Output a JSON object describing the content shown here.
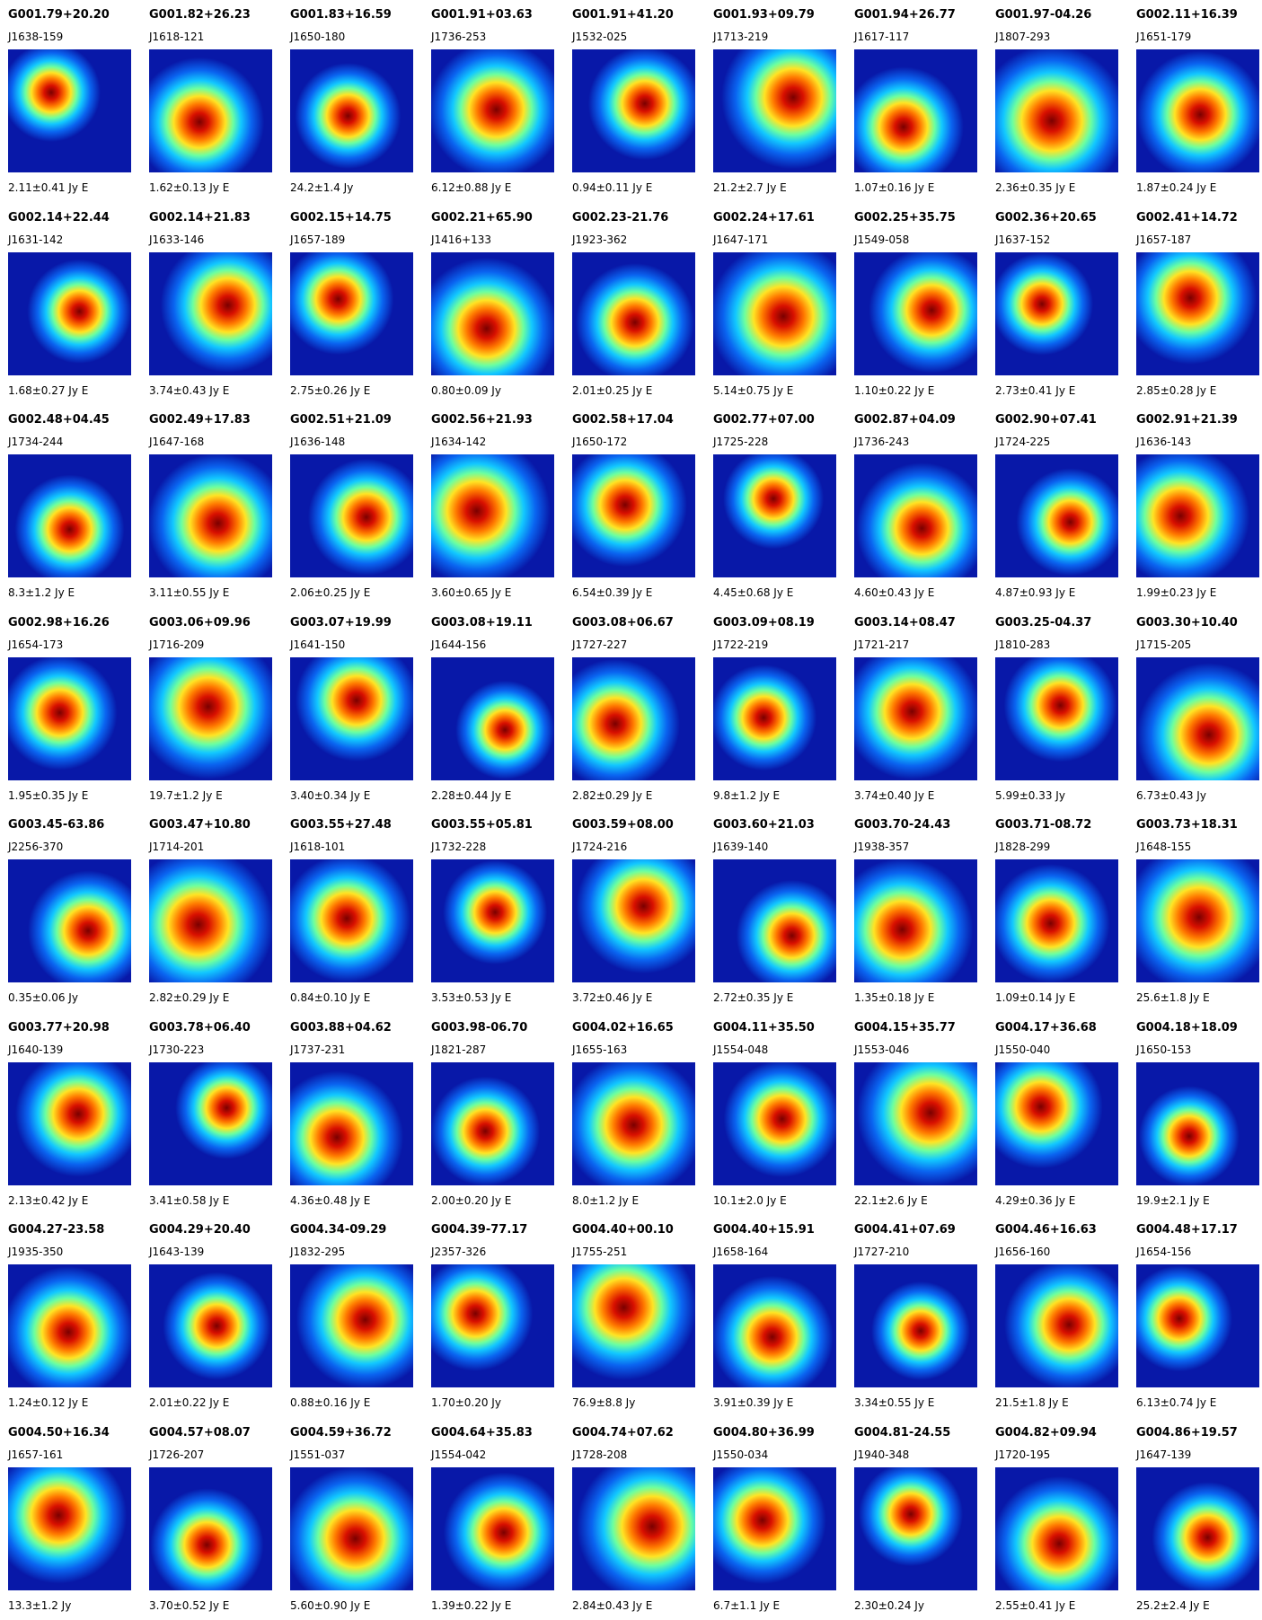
{
  "items": [
    {
      "name": "G001.79+20.20",
      "alt": "J1638-159",
      "flux": "2.11±0.41 Jy E"
    },
    {
      "name": "G001.82+26.23",
      "alt": "J1618-121",
      "flux": "1.62±0.13 Jy E"
    },
    {
      "name": "G001.83+16.59",
      "alt": "J1650-180",
      "flux": "24.2±1.4 Jy"
    },
    {
      "name": "G001.91+03.63",
      "alt": "J1736-253",
      "flux": "6.12±0.88 Jy E"
    },
    {
      "name": "G001.91+41.20",
      "alt": "J1532-025",
      "flux": "0.94±0.11 Jy E"
    },
    {
      "name": "G001.93+09.79",
      "alt": "J1713-219",
      "flux": "21.2±2.7 Jy E"
    },
    {
      "name": "G001.94+26.77",
      "alt": "J1617-117",
      "flux": "1.07±0.16 Jy E"
    },
    {
      "name": "G001.97-04.26",
      "alt": "J1807-293",
      "flux": "2.36±0.35 Jy E"
    },
    {
      "name": "G002.11+16.39",
      "alt": "J1651-179",
      "flux": "1.87±0.24 Jy E"
    },
    {
      "name": "G002.14+22.44",
      "alt": "J1631-142",
      "flux": "1.68±0.27 Jy E"
    },
    {
      "name": "G002.14+21.83",
      "alt": "J1633-146",
      "flux": "3.74±0.43 Jy E"
    },
    {
      "name": "G002.15+14.75",
      "alt": "J1657-189",
      "flux": "2.75±0.26 Jy E"
    },
    {
      "name": "G002.21+65.90",
      "alt": "J1416+133",
      "flux": "0.80±0.09 Jy"
    },
    {
      "name": "G002.23-21.76",
      "alt": "J1923-362",
      "flux": "2.01±0.25 Jy E"
    },
    {
      "name": "G002.24+17.61",
      "alt": "J1647-171",
      "flux": "5.14±0.75 Jy E"
    },
    {
      "name": "G002.25+35.75",
      "alt": "J1549-058",
      "flux": "1.10±0.22 Jy E"
    },
    {
      "name": "G002.36+20.65",
      "alt": "J1637-152",
      "flux": "2.73±0.41 Jy E"
    },
    {
      "name": "G002.41+14.72",
      "alt": "J1657-187",
      "flux": "2.85±0.28 Jy E"
    },
    {
      "name": "G002.48+04.45",
      "alt": "J1734-244",
      "flux": "8.3±1.2 Jy E"
    },
    {
      "name": "G002.49+17.83",
      "alt": "J1647-168",
      "flux": "3.11±0.55 Jy E"
    },
    {
      "name": "G002.51+21.09",
      "alt": "J1636-148",
      "flux": "2.06±0.25 Jy E"
    },
    {
      "name": "G002.56+21.93",
      "alt": "J1634-142",
      "flux": "3.60±0.65 Jy E"
    },
    {
      "name": "G002.58+17.04",
      "alt": "J1650-172",
      "flux": "6.54±0.39 Jy E"
    },
    {
      "name": "G002.77+07.00",
      "alt": "J1725-228",
      "flux": "4.45±0.68 Jy E"
    },
    {
      "name": "G002.87+04.09",
      "alt": "J1736-243",
      "flux": "4.60±0.43 Jy E"
    },
    {
      "name": "G002.90+07.41",
      "alt": "J1724-225",
      "flux": "4.87±0.93 Jy E"
    },
    {
      "name": "G002.91+21.39",
      "alt": "J1636-143",
      "flux": "1.99±0.23 Jy E"
    },
    {
      "name": "G002.98+16.26",
      "alt": "J1654-173",
      "flux": "1.95±0.35 Jy E"
    },
    {
      "name": "G003.06+09.96",
      "alt": "J1716-209",
      "flux": "19.7±1.2 Jy E"
    },
    {
      "name": "G003.07+19.99",
      "alt": "J1641-150",
      "flux": "3.40±0.34 Jy E"
    },
    {
      "name": "G003.08+19.11",
      "alt": "J1644-156",
      "flux": "2.28±0.44 Jy E"
    },
    {
      "name": "G003.08+06.67",
      "alt": "J1727-227",
      "flux": "2.82±0.29 Jy E"
    },
    {
      "name": "G003.09+08.19",
      "alt": "J1722-219",
      "flux": "9.8±1.2 Jy E"
    },
    {
      "name": "G003.14+08.47",
      "alt": "J1721-217",
      "flux": "3.74±0.40 Jy E"
    },
    {
      "name": "G003.25-04.37",
      "alt": "J1810-283",
      "flux": "5.99±0.33 Jy"
    },
    {
      "name": "G003.30+10.40",
      "alt": "J1715-205",
      "flux": "6.73±0.43 Jy"
    },
    {
      "name": "G003.45-63.86",
      "alt": "J2256-370",
      "flux": "0.35±0.06 Jy"
    },
    {
      "name": "G003.47+10.80",
      "alt": "J1714-201",
      "flux": "2.82±0.29 Jy E"
    },
    {
      "name": "G003.55+27.48",
      "alt": "J1618-101",
      "flux": "0.84±0.10 Jy E"
    },
    {
      "name": "G003.55+05.81",
      "alt": "J1732-228",
      "flux": "3.53±0.53 Jy E"
    },
    {
      "name": "G003.59+08.00",
      "alt": "J1724-216",
      "flux": "3.72±0.46 Jy E"
    },
    {
      "name": "G003.60+21.03",
      "alt": "J1639-140",
      "flux": "2.72±0.35 Jy E"
    },
    {
      "name": "G003.70-24.43",
      "alt": "J1938-357",
      "flux": "1.35±0.18 Jy E"
    },
    {
      "name": "G003.71-08.72",
      "alt": "J1828-299",
      "flux": "1.09±0.14 Jy E"
    },
    {
      "name": "G003.73+18.31",
      "alt": "J1648-155",
      "flux": "25.6±1.8 Jy E"
    },
    {
      "name": "G003.77+20.98",
      "alt": "J1640-139",
      "flux": "2.13±0.42 Jy E"
    },
    {
      "name": "G003.78+06.40",
      "alt": "J1730-223",
      "flux": "3.41±0.58 Jy E"
    },
    {
      "name": "G003.88+04.62",
      "alt": "J1737-231",
      "flux": "4.36±0.48 Jy E"
    },
    {
      "name": "G003.98-06.70",
      "alt": "J1821-287",
      "flux": "2.00±0.20 Jy E"
    },
    {
      "name": "G004.02+16.65",
      "alt": "J1655-163",
      "flux": "8.0±1.2 Jy E"
    },
    {
      "name": "G004.11+35.50",
      "alt": "J1554-048",
      "flux": "10.1±2.0 Jy E"
    },
    {
      "name": "G004.15+35.77",
      "alt": "J1553-046",
      "flux": "22.1±2.6 Jy E"
    },
    {
      "name": "G004.17+36.68",
      "alt": "J1550-040",
      "flux": "4.29±0.36 Jy E"
    },
    {
      "name": "G004.18+18.09",
      "alt": "J1650-153",
      "flux": "19.9±2.1 Jy E"
    },
    {
      "name": "G004.27-23.58",
      "alt": "J1935-350",
      "flux": "1.24±0.12 Jy E"
    },
    {
      "name": "G004.29+20.40",
      "alt": "J1643-139",
      "flux": "2.01±0.22 Jy E"
    },
    {
      "name": "G004.34-09.29",
      "alt": "J1832-295",
      "flux": "0.88±0.16 Jy E"
    },
    {
      "name": "G004.39-77.17",
      "alt": "J2357-326",
      "flux": "1.70±0.20 Jy"
    },
    {
      "name": "G004.40+00.10",
      "alt": "J1755-251",
      "flux": "76.9±8.8 Jy"
    },
    {
      "name": "G004.40+15.91",
      "alt": "J1658-164",
      "flux": "3.91±0.39 Jy E"
    },
    {
      "name": "G004.41+07.69",
      "alt": "J1727-210",
      "flux": "3.34±0.55 Jy E"
    },
    {
      "name": "G004.46+16.63",
      "alt": "J1656-160",
      "flux": "21.5±1.8 Jy E"
    },
    {
      "name": "G004.48+17.17",
      "alt": "J1654-156",
      "flux": "6.13±0.74 Jy E"
    },
    {
      "name": "G004.50+16.34",
      "alt": "J1657-161",
      "flux": "13.3±1.2 Jy"
    },
    {
      "name": "G004.57+08.07",
      "alt": "J1726-207",
      "flux": "3.70±0.52 Jy E"
    },
    {
      "name": "G004.59+36.72",
      "alt": "J1551-037",
      "flux": "5.60±0.90 Jy E"
    },
    {
      "name": "G004.64+35.83",
      "alt": "J1554-042",
      "flux": "1.39±0.22 Jy E"
    },
    {
      "name": "G004.74+07.62",
      "alt": "J1728-208",
      "flux": "2.84±0.43 Jy E"
    },
    {
      "name": "G004.80+36.99",
      "alt": "J1550-034",
      "flux": "6.7±1.1 Jy E"
    },
    {
      "name": "G004.81-24.55",
      "alt": "J1940-348",
      "flux": "2.30±0.24 Jy"
    },
    {
      "name": "G004.82+09.94",
      "alt": "J1720-195",
      "flux": "2.55±0.41 Jy E"
    },
    {
      "name": "G004.86+19.57",
      "alt": "J1647-139",
      "flux": "25.2±2.4 Jy E"
    }
  ]
}
